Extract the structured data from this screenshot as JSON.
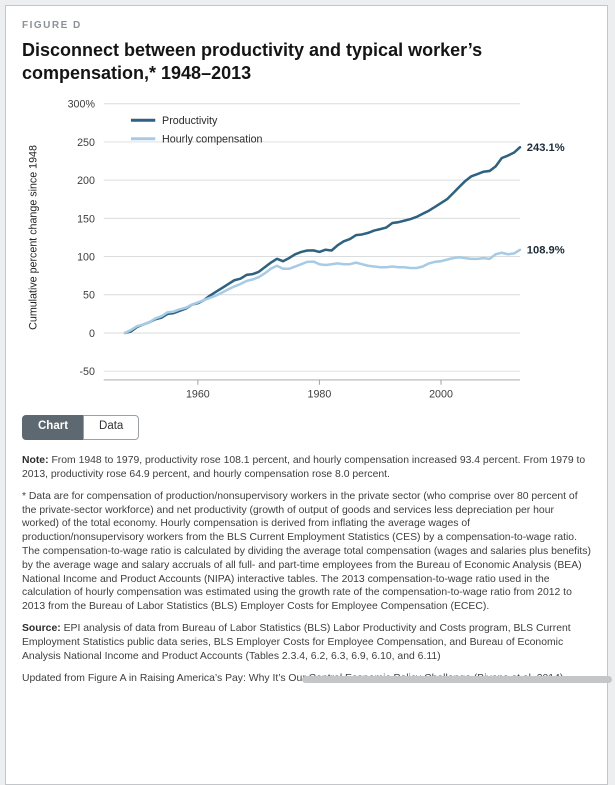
{
  "figure_label": "FIGURE D",
  "title": "Disconnect between productivity and typical worker’s compensation,* 1948–2013",
  "tabs": [
    {
      "label": "Chart",
      "active": true
    },
    {
      "label": "Data",
      "active": false
    }
  ],
  "note": {
    "label": "Note:",
    "text": "From 1948 to 1979, productivity rose 108.1 percent, and hourly compensation increased 93.4 percent. From 1979 to 2013, productivity rose 64.9 percent, and hourly compensation rose 8.0 percent."
  },
  "footnote": "* Data are for compensation of production/nonsupervisory workers in the private sector (who comprise over 80 percent of the private-sector workforce) and net productivity (growth of output of goods and services less depreciation per hour worked) of the total economy. Hourly compensation is derived from inflating the average wages of production/nonsupervisory workers from the BLS Current Employment Statistics (CES) by a compensation-to-wage ratio. The compensation-to-wage ratio is calculated by dividing the average total compensation (wages and salaries plus benefits) by the average wage and salary accruals of all full- and part-time employees from the Bureau of Economic Analysis (BEA) National Income and Product Accounts (NIPA) interactive tables. The 2013 compensation-to-wage ratio used in the calculation of hourly compensation was estimated using the growth rate of the compensation-to-wage ratio from 2012 to 2013 from the Bureau of Labor Statistics (BLS) Employer Costs for Employee Compensation (ECEC).",
  "source": {
    "label": "Source:",
    "text": "EPI analysis of data from Bureau of Labor Statistics (BLS) Labor Productivity and Costs program, BLS Current Employment Statistics public data series, BLS Employer Costs for Employee Compensation, and Bureau of Economic Analysis National Income and Product Accounts (Tables 2.3.4, 6.2, 6.3, 6.9, 6.10, and 6.11)",
    "updated": "Updated from Figure A in Raising America’s Pay: Why It’s Our Central Economic Policy Challenge (Bivens et al. 2014)"
  },
  "chart_data": {
    "type": "line",
    "title": "Disconnect between productivity and typical worker’s compensation, 1948–2013",
    "xlabel": "",
    "ylabel": "Cumulative percent change since 1948",
    "y_ticks": [
      "300%",
      "250",
      "200",
      "150",
      "100",
      "50",
      "0",
      "-50"
    ],
    "y_tick_values": [
      300,
      250,
      200,
      150,
      100,
      50,
      0,
      -50
    ],
    "x_ticks": [
      1960,
      1980,
      2000
    ],
    "x_axis_range": [
      1944.5,
      2013
    ],
    "y_range": [
      -50,
      300
    ],
    "grid_on": true,
    "grid_color": "#dadcde",
    "legend_position": "top-left",
    "series": [
      {
        "name": "Productivity",
        "color": "#2f6280",
        "end_label": "243.1%",
        "points": [
          [
            1948,
            0
          ],
          [
            1949,
            2
          ],
          [
            1950,
            8
          ],
          [
            1951,
            11
          ],
          [
            1952,
            14
          ],
          [
            1953,
            18
          ],
          [
            1954,
            20
          ],
          [
            1955,
            25
          ],
          [
            1956,
            26
          ],
          [
            1957,
            29
          ],
          [
            1958,
            32
          ],
          [
            1959,
            37
          ],
          [
            1960,
            39
          ],
          [
            1961,
            43
          ],
          [
            1962,
            49
          ],
          [
            1963,
            54
          ],
          [
            1964,
            59
          ],
          [
            1965,
            64
          ],
          [
            1966,
            69
          ],
          [
            1967,
            71
          ],
          [
            1968,
            76
          ],
          [
            1969,
            77
          ],
          [
            1970,
            80
          ],
          [
            1971,
            86
          ],
          [
            1972,
            92
          ],
          [
            1973,
            97
          ],
          [
            1974,
            94
          ],
          [
            1975,
            98
          ],
          [
            1976,
            103
          ],
          [
            1977,
            106
          ],
          [
            1978,
            108
          ],
          [
            1979,
            108.1
          ],
          [
            1980,
            106
          ],
          [
            1981,
            109
          ],
          [
            1982,
            108
          ],
          [
            1983,
            115
          ],
          [
            1984,
            120
          ],
          [
            1985,
            123
          ],
          [
            1986,
            128
          ],
          [
            1987,
            129
          ],
          [
            1988,
            131
          ],
          [
            1989,
            134
          ],
          [
            1990,
            136
          ],
          [
            1991,
            138
          ],
          [
            1992,
            144
          ],
          [
            1993,
            145
          ],
          [
            1994,
            147
          ],
          [
            1995,
            149
          ],
          [
            1996,
            152
          ],
          [
            1997,
            156
          ],
          [
            1998,
            160
          ],
          [
            1999,
            165
          ],
          [
            2000,
            170
          ],
          [
            2001,
            175
          ],
          [
            2002,
            183
          ],
          [
            2003,
            191
          ],
          [
            2004,
            199
          ],
          [
            2005,
            205
          ],
          [
            2006,
            208
          ],
          [
            2007,
            211
          ],
          [
            2008,
            212
          ],
          [
            2009,
            218
          ],
          [
            2010,
            229
          ],
          [
            2011,
            232
          ],
          [
            2012,
            236
          ],
          [
            2013,
            243.1
          ]
        ]
      },
      {
        "name": "Hourly compensation",
        "color": "#a7cbe5",
        "end_label": "108.9%",
        "points": [
          [
            1948,
            0
          ],
          [
            1949,
            4
          ],
          [
            1950,
            9
          ],
          [
            1951,
            11
          ],
          [
            1952,
            14
          ],
          [
            1953,
            19
          ],
          [
            1954,
            22
          ],
          [
            1955,
            27
          ],
          [
            1956,
            28
          ],
          [
            1957,
            31
          ],
          [
            1958,
            33
          ],
          [
            1959,
            37
          ],
          [
            1960,
            40
          ],
          [
            1961,
            43
          ],
          [
            1962,
            46
          ],
          [
            1963,
            49
          ],
          [
            1964,
            53
          ],
          [
            1965,
            57
          ],
          [
            1966,
            61
          ],
          [
            1967,
            64
          ],
          [
            1968,
            68
          ],
          [
            1969,
            70
          ],
          [
            1970,
            73
          ],
          [
            1971,
            78
          ],
          [
            1972,
            84
          ],
          [
            1973,
            88
          ],
          [
            1974,
            84
          ],
          [
            1975,
            84
          ],
          [
            1976,
            87
          ],
          [
            1977,
            90
          ],
          [
            1978,
            93
          ],
          [
            1979,
            93.4
          ],
          [
            1980,
            90
          ],
          [
            1981,
            89
          ],
          [
            1982,
            90
          ],
          [
            1983,
            91
          ],
          [
            1984,
            90
          ],
          [
            1985,
            90
          ],
          [
            1986,
            92
          ],
          [
            1987,
            90
          ],
          [
            1988,
            88
          ],
          [
            1989,
            87
          ],
          [
            1990,
            86
          ],
          [
            1991,
            86
          ],
          [
            1992,
            87
          ],
          [
            1993,
            86
          ],
          [
            1994,
            86
          ],
          [
            1995,
            85
          ],
          [
            1996,
            85
          ],
          [
            1997,
            87
          ],
          [
            1998,
            91
          ],
          [
            1999,
            93
          ],
          [
            2000,
            94
          ],
          [
            2001,
            96
          ],
          [
            2002,
            98
          ],
          [
            2003,
            99
          ],
          [
            2004,
            98
          ],
          [
            2005,
            97
          ],
          [
            2006,
            97
          ],
          [
            2007,
            98
          ],
          [
            2008,
            97
          ],
          [
            2009,
            103
          ],
          [
            2010,
            105
          ],
          [
            2011,
            103
          ],
          [
            2012,
            104
          ],
          [
            2013,
            108.9
          ]
        ]
      }
    ]
  }
}
